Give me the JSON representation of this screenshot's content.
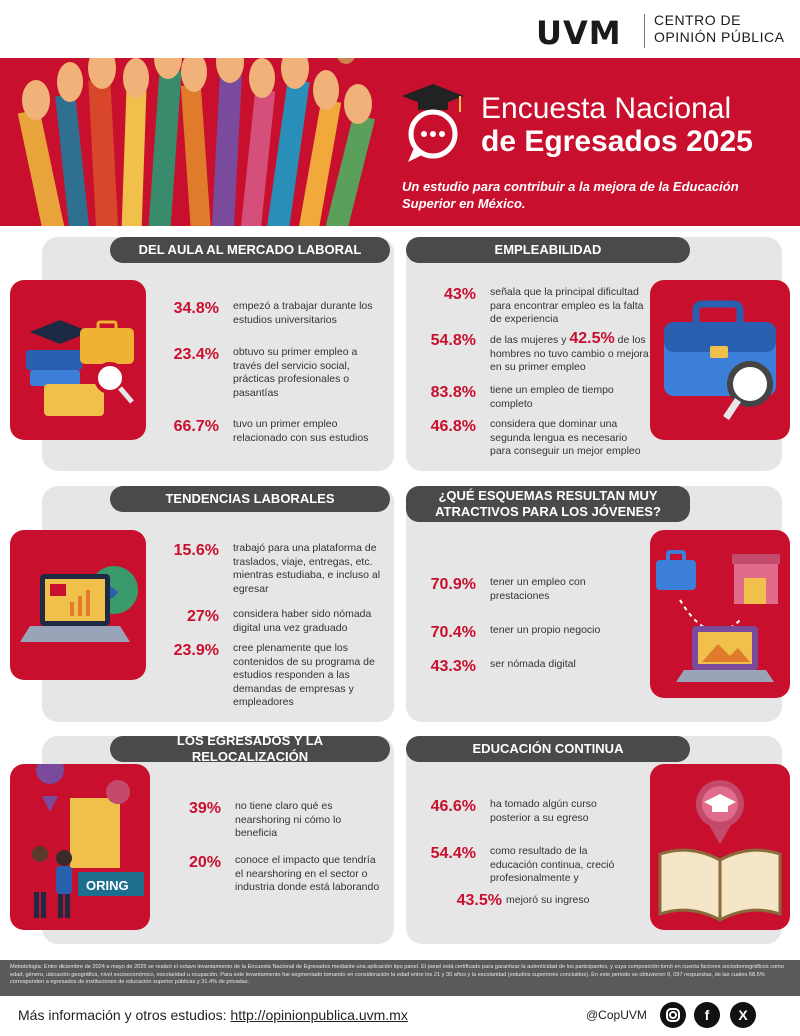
{
  "brand": {
    "logo": "UVM",
    "center_line1": "CENTRO DE",
    "center_line2": "OPINIÓN PÚBLICA"
  },
  "hero": {
    "title_line1": "Encuesta Nacional",
    "title_line2": "de Egresados 2025",
    "subtitle": "Un estudio para contribuir a la mejora de la Educación Superior en México."
  },
  "sections": {
    "aula": {
      "title": "DEL AULA AL MERCADO LABORAL",
      "stats": [
        {
          "pct": "34.8%",
          "text": "empezó a trabajar durante los estudios universitarios"
        },
        {
          "pct": "23.4%",
          "text": "obtuvo su primer empleo a través del servicio social, prácticas profesionales o pasantías"
        },
        {
          "pct": "66.7%",
          "text": "tuvo un primer empleo relacionado con sus estudios"
        }
      ]
    },
    "empleabilidad": {
      "title": "EMPLEABILIDAD",
      "stats": [
        {
          "pct": "43%",
          "text": "señala que la principal dificultad para encontrar empleo es la falta de experiencia"
        },
        {
          "pct": "54.8%",
          "text_pre": "de las mujeres y ",
          "pct2": "42.5%",
          "text": " de los hombres no tuvo cambio o mejora en su primer empleo"
        },
        {
          "pct": "83.8%",
          "text": "tiene un empleo de tiempo completo"
        },
        {
          "pct": "46.8%",
          "text": "considera que dominar una segunda lengua es necesario para conseguir un mejor empleo"
        }
      ]
    },
    "tendencias": {
      "title": "TENDENCIAS LABORALES",
      "stats": [
        {
          "pct": "15.6%",
          "text": "trabajó para una plataforma de traslados, viaje, entregas, etc. mientras estudiaba, e incluso al egresar"
        },
        {
          "pct": "27%",
          "text": "considera haber sido nómada digital una vez graduado"
        },
        {
          "pct": "23.9%",
          "text": "cree plenamente que los contenidos de su programa de estudios responden a las demandas de empresas y empleadores"
        }
      ]
    },
    "esquemas": {
      "title": "¿QUÉ ESQUEMAS RESULTAN MUY ATRACTIVOS PARA LOS JÓVENES?",
      "stats": [
        {
          "pct": "70.9%",
          "text": "tener un empleo con prestaciones"
        },
        {
          "pct": "70.4%",
          "text": "tener un propio negocio"
        },
        {
          "pct": "43.3%",
          "text": "ser nómada digital"
        }
      ]
    },
    "relocalizacion": {
      "title": "LOS EGRESADOS Y LA RELOCALIZACIÓN",
      "illus_text": "ORING",
      "stats": [
        {
          "pct": "39%",
          "text": "no tiene claro qué es nearshoring ni cómo lo beneficia"
        },
        {
          "pct": "20%",
          "text": "conoce el impacto que tendría el nearshoring en el sector o industria donde está laborando"
        }
      ]
    },
    "continua": {
      "title": "EDUCACIÓN CONTINUA",
      "stats": [
        {
          "pct": "46.6%",
          "text": "ha tomado algún curso posterior a su egreso"
        },
        {
          "pct": "54.4%",
          "text": "como resultado de la educación continua, creció profesionalmente y"
        },
        {
          "pct": "43.5%",
          "text": "mejoró su ingreso"
        }
      ]
    }
  },
  "methodology": "Metodología: Entre diciembre de 2024 a mayo de 2025 se realizó el octavo levantamiento de la Encuesta Nacional de Egresados mediante una aplicación tipo panel. El panel está certificado para garantizar la autenticidad de los participantes, y cuya composición tomó en cuenta factores sociodemográficos como edad, género, ubicación geográfica, nivel socioeconómico, escolaridad u ocupación. Para este levantamiento fue segmentado tomando en consideración la edad entre los 21 y 30 años y la escolaridad (estudios superiores concluidos). En este periodo se obtuvieron 9, 097 respuestas, de las cuales 68.5% corresponden a egresados de instituciones de educación superior públicas y 31.4% de privadas.",
  "footer": {
    "more_label": "Más información y otros estudios:",
    "url": "http://opinionpublica.uvm.mx",
    "handle": "@CopUVM",
    "icons": [
      "instagram-icon",
      "facebook-icon",
      "x-icon"
    ]
  },
  "colors": {
    "accent": "#c8102e",
    "panel": "#e6e6e6",
    "pill": "#4a4a4a"
  }
}
